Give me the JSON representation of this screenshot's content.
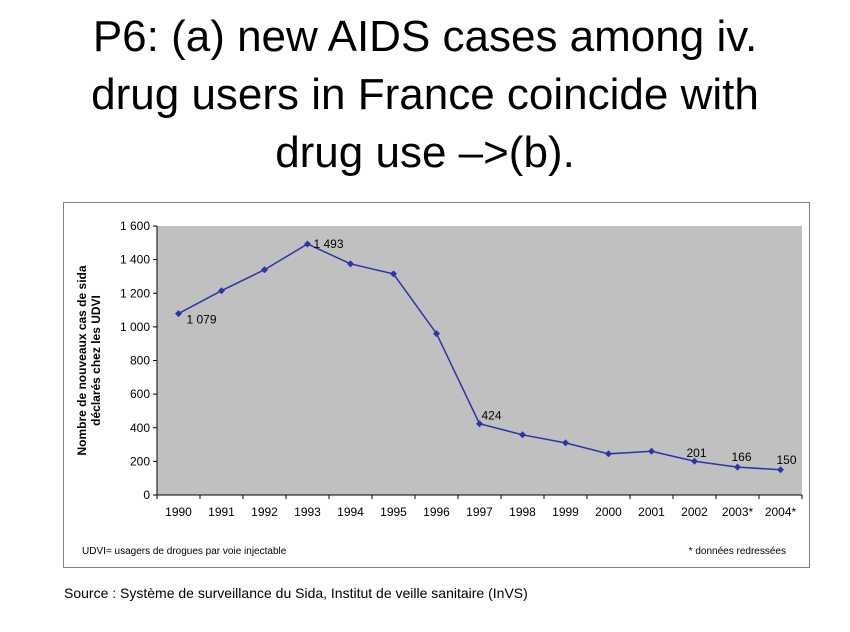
{
  "slide": {
    "title_lines": [
      "P6: (a) new AIDS cases among iv.",
      "drug users in France coincide with",
      "drug use –>(b)."
    ],
    "source": "Source : Système de surveillance du Sida, Institut de veille sanitaire (InVS)"
  },
  "chart_data": {
    "type": "line",
    "title": "",
    "xlabel": "",
    "ylabel_lines": [
      "Nombre de nouveaux cas de sida",
      "déclarés chez les UDVI"
    ],
    "categories": [
      "1990",
      "1991",
      "1992",
      "1993",
      "1994",
      "1995",
      "1996",
      "1997",
      "1998",
      "1999",
      "2000",
      "2001",
      "2002",
      "2003*",
      "2004*"
    ],
    "series": [
      {
        "values": [
          1079,
          1215,
          1340,
          1493,
          1375,
          1315,
          960,
          424,
          358,
          310,
          245,
          260,
          201,
          166,
          150
        ]
      }
    ],
    "data_labels": [
      {
        "index": 0,
        "text": "1 079"
      },
      {
        "index": 3,
        "text": "1 493"
      },
      {
        "index": 7,
        "text": "424"
      },
      {
        "index": 12,
        "text": "201"
      },
      {
        "index": 13,
        "text": "166"
      },
      {
        "index": 14,
        "text": "150"
      }
    ],
    "ylim": [
      0,
      1600
    ],
    "yticks": [
      0,
      200,
      400,
      600,
      800,
      1000,
      1200,
      1400,
      1600
    ],
    "ytick_labels": [
      "0",
      "200",
      "400",
      "600",
      "800",
      "1 000",
      "1 200",
      "1 400",
      "1 600"
    ],
    "footnote_left": "UDVI= usagers de drogues par voie injectable",
    "footnote_right": "* données redressées",
    "colors": {
      "plot_bg": "#C0C0C0",
      "line": "#2A35A8",
      "axis": "#000000"
    },
    "grid": false
  }
}
